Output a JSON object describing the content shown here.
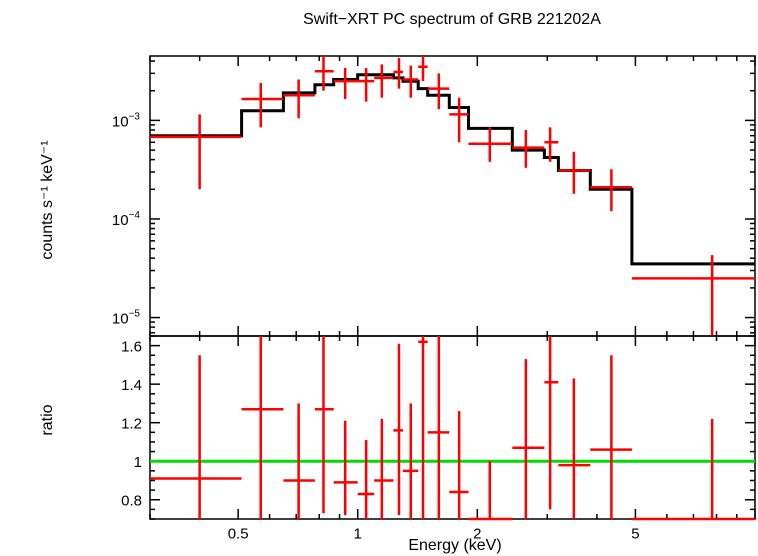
{
  "chart_data": {
    "type": "scatter",
    "title": "Swift−XRT PC spectrum of GRB 221202A",
    "xlabel": "Energy (keV)",
    "xscale": "log",
    "xlim": [
      0.3,
      10
    ],
    "xticks": [
      {
        "value": 0.5,
        "label": "0.5"
      },
      {
        "value": 1,
        "label": "1"
      },
      {
        "value": 2,
        "label": "2"
      },
      {
        "value": 5,
        "label": "5"
      }
    ],
    "panels": [
      {
        "id": "spectrum",
        "ylabel": "counts s⁻¹ keV⁻¹",
        "yscale": "log",
        "ylim": [
          6.5e-06,
          0.0045
        ],
        "yticks": [
          {
            "value": 1e-05,
            "base": "10",
            "exp": "−5"
          },
          {
            "value": 0.0001,
            "base": "10",
            "exp": "−4"
          },
          {
            "value": 0.001,
            "base": "10",
            "exp": "−3"
          }
        ],
        "data": {
          "name": "data",
          "color": "#ff0000",
          "points": [
            {
              "x0": 0.3,
              "x1": 0.51,
              "x": 0.4,
              "y": 0.00068,
              "ylo": 0.0002,
              "yhi": 0.00115
            },
            {
              "x0": 0.51,
              "x1": 0.65,
              "x": 0.57,
              "y": 0.00165,
              "ylo": 0.00085,
              "yhi": 0.0024
            },
            {
              "x0": 0.65,
              "x1": 0.78,
              "x": 0.71,
              "y": 0.0018,
              "ylo": 0.00105,
              "yhi": 0.0026
            },
            {
              "x0": 0.78,
              "x1": 0.87,
              "x": 0.82,
              "y": 0.00315,
              "ylo": 0.002,
              "yhi": 0.0045
            },
            {
              "x0": 0.87,
              "x1": 1.0,
              "x": 0.93,
              "y": 0.0025,
              "ylo": 0.00165,
              "yhi": 0.0034
            },
            {
              "x0": 1.0,
              "x1": 1.1,
              "x": 1.05,
              "y": 0.0025,
              "ylo": 0.00155,
              "yhi": 0.0034
            },
            {
              "x0": 1.1,
              "x1": 1.23,
              "x": 1.15,
              "y": 0.0027,
              "ylo": 0.0017,
              "yhi": 0.0037
            },
            {
              "x0": 1.23,
              "x1": 1.3,
              "x": 1.27,
              "y": 0.0031,
              "ylo": 0.0021,
              "yhi": 0.0043
            },
            {
              "x0": 1.3,
              "x1": 1.42,
              "x": 1.36,
              "y": 0.0026,
              "ylo": 0.0017,
              "yhi": 0.0036
            },
            {
              "x0": 1.42,
              "x1": 1.5,
              "x": 1.46,
              "y": 0.0035,
              "ylo": 0.0025,
              "yhi": 0.0046
            },
            {
              "x0": 1.5,
              "x1": 1.7,
              "x": 1.6,
              "y": 0.0021,
              "ylo": 0.0013,
              "yhi": 0.003
            },
            {
              "x0": 1.7,
              "x1": 1.9,
              "x": 1.8,
              "y": 0.00115,
              "ylo": 0.0006,
              "yhi": 0.0017
            },
            {
              "x0": 1.9,
              "x1": 2.45,
              "x": 2.15,
              "y": 0.00058,
              "ylo": 0.00038,
              "yhi": 0.00085
            },
            {
              "x0": 2.45,
              "x1": 2.95,
              "x": 2.65,
              "y": 0.00053,
              "ylo": 0.00033,
              "yhi": 0.0008
            },
            {
              "x0": 2.95,
              "x1": 3.2,
              "x": 3.05,
              "y": 0.0006,
              "ylo": 0.00038,
              "yhi": 0.00085
            },
            {
              "x0": 3.2,
              "x1": 3.85,
              "x": 3.5,
              "y": 0.00031,
              "ylo": 0.00018,
              "yhi": 0.00048
            },
            {
              "x0": 3.85,
              "x1": 4.9,
              "x": 4.35,
              "y": 0.00021,
              "ylo": 0.00012,
              "yhi": 0.00032
            },
            {
              "x0": 4.9,
              "x1": 10,
              "x": 7.8,
              "y": 2.5e-05,
              "ylo": 6.5e-06,
              "yhi": 4.3e-05
            }
          ]
        },
        "model": {
          "name": "model",
          "color": "#000000",
          "steps": [
            {
              "x0": 0.3,
              "x1": 0.51,
              "y": 0.0007
            },
            {
              "x0": 0.51,
              "x1": 0.65,
              "y": 0.00125
            },
            {
              "x0": 0.65,
              "x1": 0.78,
              "y": 0.0019
            },
            {
              "x0": 0.78,
              "x1": 0.87,
              "y": 0.0023
            },
            {
              "x0": 0.87,
              "x1": 1.0,
              "y": 0.0026
            },
            {
              "x0": 1.0,
              "x1": 1.1,
              "y": 0.0029
            },
            {
              "x0": 1.1,
              "x1": 1.23,
              "y": 0.0029
            },
            {
              "x0": 1.23,
              "x1": 1.3,
              "y": 0.0027
            },
            {
              "x0": 1.3,
              "x1": 1.42,
              "y": 0.0025
            },
            {
              "x0": 1.42,
              "x1": 1.5,
              "y": 0.0021
            },
            {
              "x0": 1.5,
              "x1": 1.7,
              "y": 0.0018
            },
            {
              "x0": 1.7,
              "x1": 1.9,
              "y": 0.00135
            },
            {
              "x0": 1.9,
              "x1": 2.45,
              "y": 0.00083
            },
            {
              "x0": 2.45,
              "x1": 2.95,
              "y": 0.0005
            },
            {
              "x0": 2.95,
              "x1": 3.2,
              "y": 0.00042
            },
            {
              "x0": 3.2,
              "x1": 3.85,
              "y": 0.00031
            },
            {
              "x0": 3.85,
              "x1": 4.9,
              "y": 0.0002
            },
            {
              "x0": 4.9,
              "x1": 10,
              "y": 3.5e-05
            }
          ]
        }
      },
      {
        "id": "ratio",
        "ylabel": "ratio",
        "yscale": "linear",
        "ylim": [
          0.7,
          1.65
        ],
        "yticks": [
          {
            "value": 0.8,
            "label": "0.8"
          },
          {
            "value": 1,
            "label": "1"
          },
          {
            "value": 1.2,
            "label": "1.2"
          },
          {
            "value": 1.4,
            "label": "1.4"
          },
          {
            "value": 1.6,
            "label": "1.6"
          }
        ],
        "reference": {
          "value": 1,
          "color": "#00dd00"
        },
        "data": {
          "color": "#ff0000",
          "points": [
            {
              "x0": 0.3,
              "x1": 0.51,
              "x": 0.4,
              "y": 0.91,
              "ylo": 0.7,
              "yhi": 1.55
            },
            {
              "x0": 0.51,
              "x1": 0.65,
              "x": 0.57,
              "y": 1.27,
              "ylo": 0.7,
              "yhi": 1.65
            },
            {
              "x0": 0.65,
              "x1": 0.78,
              "x": 0.71,
              "y": 0.9,
              "ylo": 0.7,
              "yhi": 1.3
            },
            {
              "x0": 0.78,
              "x1": 0.87,
              "x": 0.82,
              "y": 1.27,
              "ylo": 0.73,
              "yhi": 1.65
            },
            {
              "x0": 0.87,
              "x1": 1.0,
              "x": 0.93,
              "y": 0.89,
              "ylo": 0.72,
              "yhi": 1.21
            },
            {
              "x0": 1.0,
              "x1": 1.1,
              "x": 1.05,
              "y": 0.83,
              "ylo": 0.7,
              "yhi": 1.11
            },
            {
              "x0": 1.1,
              "x1": 1.23,
              "x": 1.15,
              "y": 0.9,
              "ylo": 0.7,
              "yhi": 1.22
            },
            {
              "x0": 1.23,
              "x1": 1.3,
              "x": 1.27,
              "y": 1.16,
              "ylo": 0.72,
              "yhi": 1.61
            },
            {
              "x0": 1.3,
              "x1": 1.42,
              "x": 1.36,
              "y": 0.95,
              "ylo": 0.7,
              "yhi": 1.3
            },
            {
              "x0": 1.42,
              "x1": 1.5,
              "x": 1.46,
              "y": 1.62,
              "ylo": 0.7,
              "yhi": 1.65
            },
            {
              "x0": 1.5,
              "x1": 1.7,
              "x": 1.6,
              "y": 1.15,
              "ylo": 0.7,
              "yhi": 1.65
            },
            {
              "x0": 1.7,
              "x1": 1.9,
              "x": 1.8,
              "y": 0.84,
              "ylo": 0.7,
              "yhi": 1.26
            },
            {
              "x0": 1.9,
              "x1": 2.45,
              "x": 2.15,
              "y": 0.7,
              "ylo": 0.7,
              "yhi": 1.0
            },
            {
              "x0": 2.45,
              "x1": 2.95,
              "x": 2.65,
              "y": 1.07,
              "ylo": 0.7,
              "yhi": 1.53
            },
            {
              "x0": 2.95,
              "x1": 3.2,
              "x": 3.05,
              "y": 1.41,
              "ylo": 0.75,
              "yhi": 1.65
            },
            {
              "x0": 3.2,
              "x1": 3.85,
              "x": 3.5,
              "y": 0.98,
              "ylo": 0.7,
              "yhi": 1.43
            },
            {
              "x0": 3.85,
              "x1": 4.9,
              "x": 4.35,
              "y": 1.06,
              "ylo": 0.7,
              "yhi": 1.55
            },
            {
              "x0": 4.9,
              "x1": 10,
              "x": 7.8,
              "y": 0.7,
              "ylo": 0.7,
              "yhi": 1.22
            }
          ]
        }
      }
    ]
  }
}
